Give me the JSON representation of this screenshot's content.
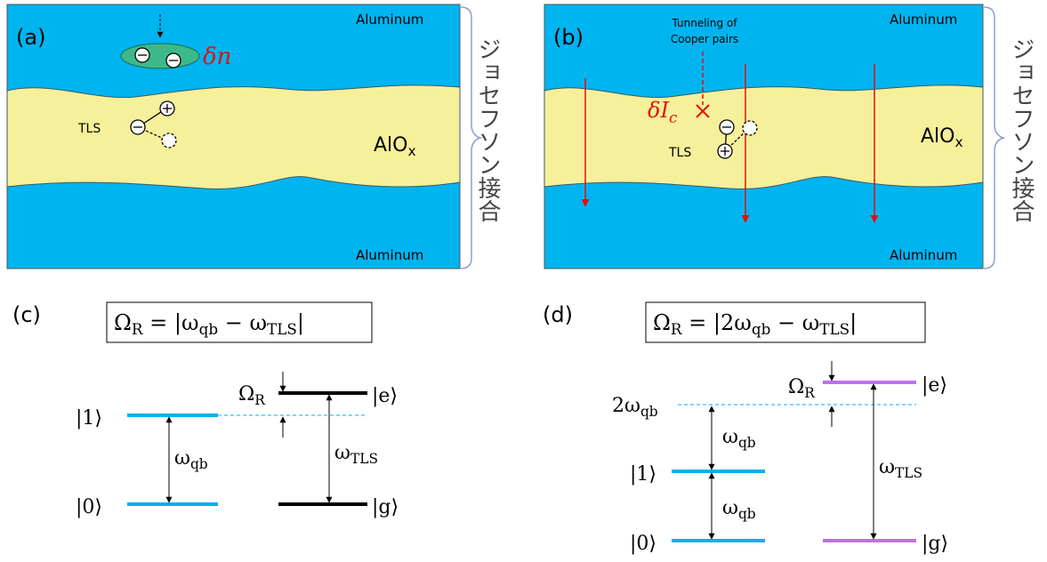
{
  "panel_a": {
    "label": "(a)",
    "top_metal": "Aluminum",
    "bottom_metal": "Aluminum",
    "fluctuation": "δn",
    "defect": "TLS",
    "barrier": {
      "base": "AlO",
      "sub": "x"
    },
    "junction": "ジョセフソン接合"
  },
  "panel_b": {
    "label": "(b)",
    "top_metal": "Aluminum",
    "bottom_metal": "Aluminum",
    "tunneling": [
      "Tunneling of",
      "Cooper pairs"
    ],
    "fluctuation": {
      "base": "δI",
      "sub": "c"
    },
    "defect": "TLS",
    "barrier": {
      "base": "AlO",
      "sub": "x"
    },
    "junction": "ジョセフソン接合"
  },
  "panel_c": {
    "label": "(c)",
    "equation": [
      "Ω",
      "R",
      " = |ω",
      "qb",
      " − ω",
      "TLS",
      "|"
    ],
    "qubit_excited": "|1⟩",
    "qubit_ground": "|0⟩",
    "qubit_freq": {
      "base": "ω",
      "sub": "qb"
    },
    "detuning": {
      "base": "Ω",
      "sub": "R"
    },
    "tls_excited": "|e⟩",
    "tls_ground": "|g⟩",
    "tls_freq": {
      "base": "ω",
      "sub": "TLS"
    }
  },
  "panel_d": {
    "label": "(d)",
    "equation": [
      "Ω",
      "R",
      " = |2ω",
      "qb",
      " − ω",
      "TLS",
      "|"
    ],
    "two_photon": {
      "base": "2ω",
      "sub": "qb"
    },
    "qubit_excited": "|1⟩",
    "qubit_ground": "|0⟩",
    "qubit_freq_upper": {
      "base": "ω",
      "sub": "qb"
    },
    "qubit_freq_lower": {
      "base": "ω",
      "sub": "qb"
    },
    "detuning": {
      "base": "Ω",
      "sub": "R"
    },
    "tls_excited": "|e⟩",
    "tls_ground": "|g⟩",
    "tls_freq": {
      "base": "ω",
      "sub": "TLS"
    }
  }
}
